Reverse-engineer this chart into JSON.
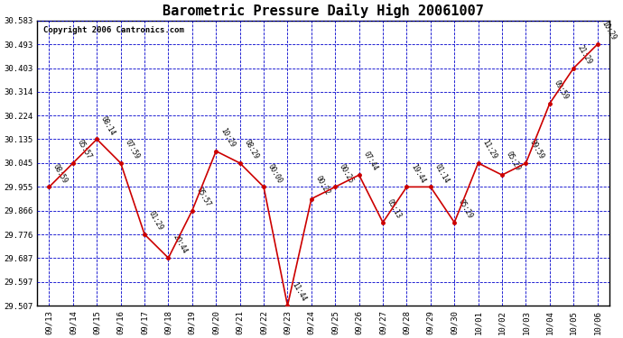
{
  "title": "Barometric Pressure Daily High 20061007",
  "copyright": "Copyright 2006 Cantronics.com",
  "x_labels": [
    "09/13",
    "09/14",
    "09/15",
    "09/16",
    "09/17",
    "09/18",
    "09/19",
    "09/20",
    "09/21",
    "09/22",
    "09/23",
    "09/24",
    "09/25",
    "09/26",
    "09/27",
    "09/28",
    "09/29",
    "09/30",
    "10/01",
    "10/02",
    "10/03",
    "10/04",
    "10/05",
    "10/06"
  ],
  "y_values": [
    29.955,
    30.045,
    30.135,
    30.045,
    29.776,
    29.687,
    29.866,
    30.09,
    30.045,
    29.955,
    29.507,
    29.91,
    29.955,
    30.0,
    29.821,
    29.955,
    29.955,
    29.821,
    30.045,
    30.0,
    30.045,
    30.27,
    30.403,
    30.493
  ],
  "point_labels": [
    "08:59",
    "05:57",
    "08:14",
    "07:59",
    "01:29",
    "20:44",
    "05:57",
    "10:29",
    "08:29",
    "00:00",
    "11:44",
    "00:22",
    "00:25",
    "07:44",
    "05:13",
    "19:44",
    "01:14",
    "05:29",
    "11:29",
    "05:29",
    "09:59",
    "09:59",
    "21:29",
    "10:29"
  ],
  "ylim_min": 29.507,
  "ylim_max": 30.583,
  "yticks": [
    29.507,
    29.597,
    29.687,
    29.776,
    29.866,
    29.955,
    30.045,
    30.135,
    30.224,
    30.314,
    30.403,
    30.493,
    30.583
  ],
  "line_color": "#cc0000",
  "marker_color": "#cc0000",
  "grid_color": "#0000cc",
  "background_color": "#ffffff",
  "title_fontsize": 11,
  "label_fontsize": 6.5,
  "point_label_fontsize": 5.5,
  "copyright_fontsize": 6.5
}
